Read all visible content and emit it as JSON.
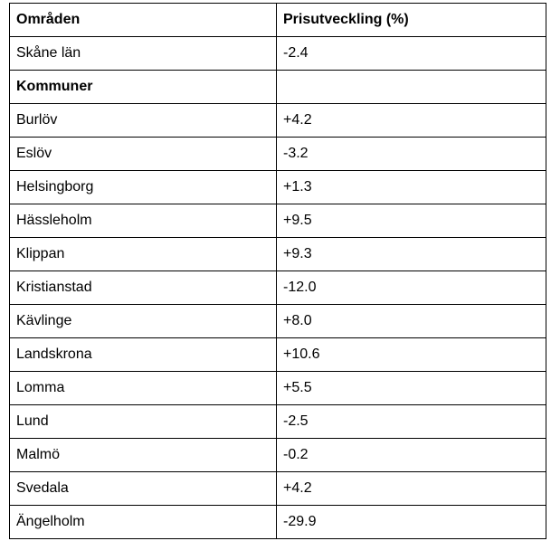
{
  "table": {
    "headers": [
      "Områden",
      "Prisutveckling (%)"
    ],
    "county_row": {
      "area": "Skåne län",
      "change": "-2.4"
    },
    "section_label": "Kommuner",
    "rows": [
      {
        "area": "Burlöv",
        "change": "+4.2"
      },
      {
        "area": "Eslöv",
        "change": "-3.2"
      },
      {
        "area": "Helsingborg",
        "change": "+1.3"
      },
      {
        "area": "Hässleholm",
        "change": "+9.5"
      },
      {
        "area": "Klippan",
        "change": "+9.3"
      },
      {
        "area": "Kristianstad",
        "change": "-12.0"
      },
      {
        "area": "Kävlinge",
        "change": "+8.0"
      },
      {
        "area": "Landskrona",
        "change": "+10.6"
      },
      {
        "area": "Lomma",
        "change": "+5.5"
      },
      {
        "area": "Lund",
        "change": "-2.5"
      },
      {
        "area": "Malmö",
        "change": "-0.2"
      },
      {
        "area": "Svedala",
        "change": "+4.2"
      },
      {
        "area": "Ängelholm",
        "change": "-29.9"
      }
    ]
  }
}
